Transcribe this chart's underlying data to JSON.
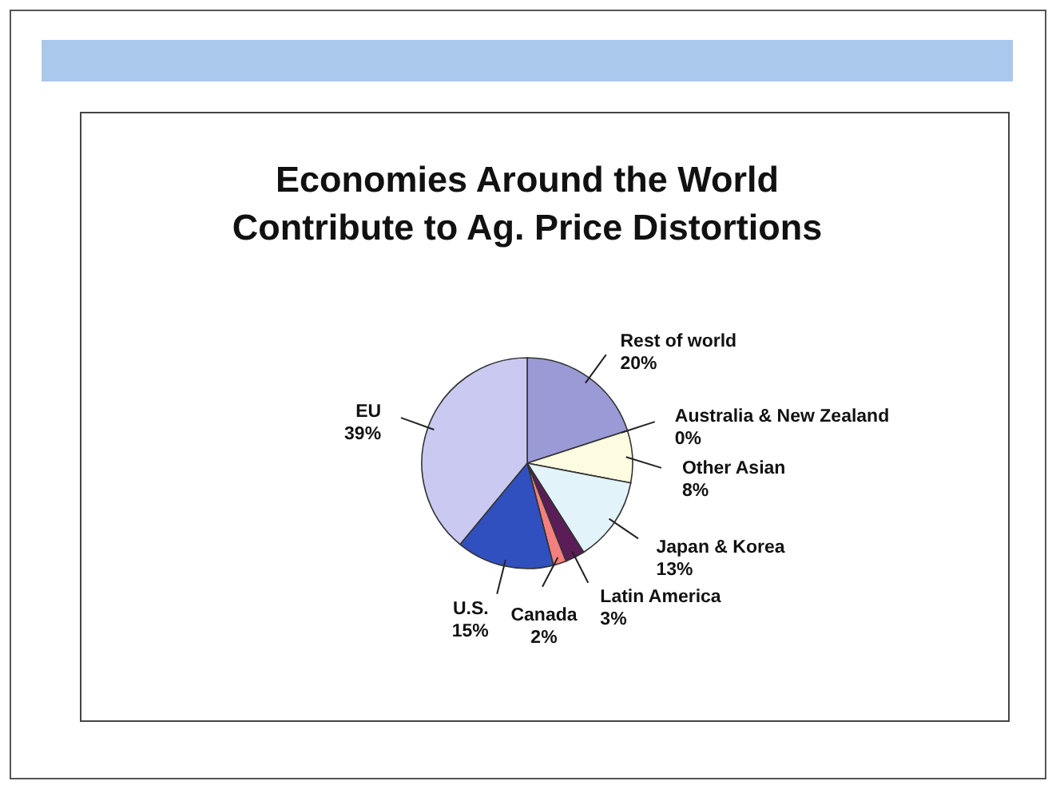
{
  "chart_data": {
    "type": "pie",
    "title": "Economies Around the World\nContribute to Ag. Price Distortions",
    "categories": [
      "Rest of world",
      "Australia & New Zealand",
      "Other Asian",
      "Japan & Korea",
      "Latin America",
      "Canada",
      "U.S.",
      "EU"
    ],
    "values": [
      20,
      0,
      8,
      13,
      3,
      2,
      15,
      39
    ],
    "value_labels": [
      "20%",
      "0%",
      "8%",
      "13%",
      "3%",
      "2%",
      "15%",
      "39%"
    ],
    "colors": [
      "#9a9ad6",
      "#1a1a3a",
      "#fdfbe0",
      "#e2f3fa",
      "#5a1d57",
      "#f47f7f",
      "#3150bf",
      "#c9c9f1"
    ]
  }
}
